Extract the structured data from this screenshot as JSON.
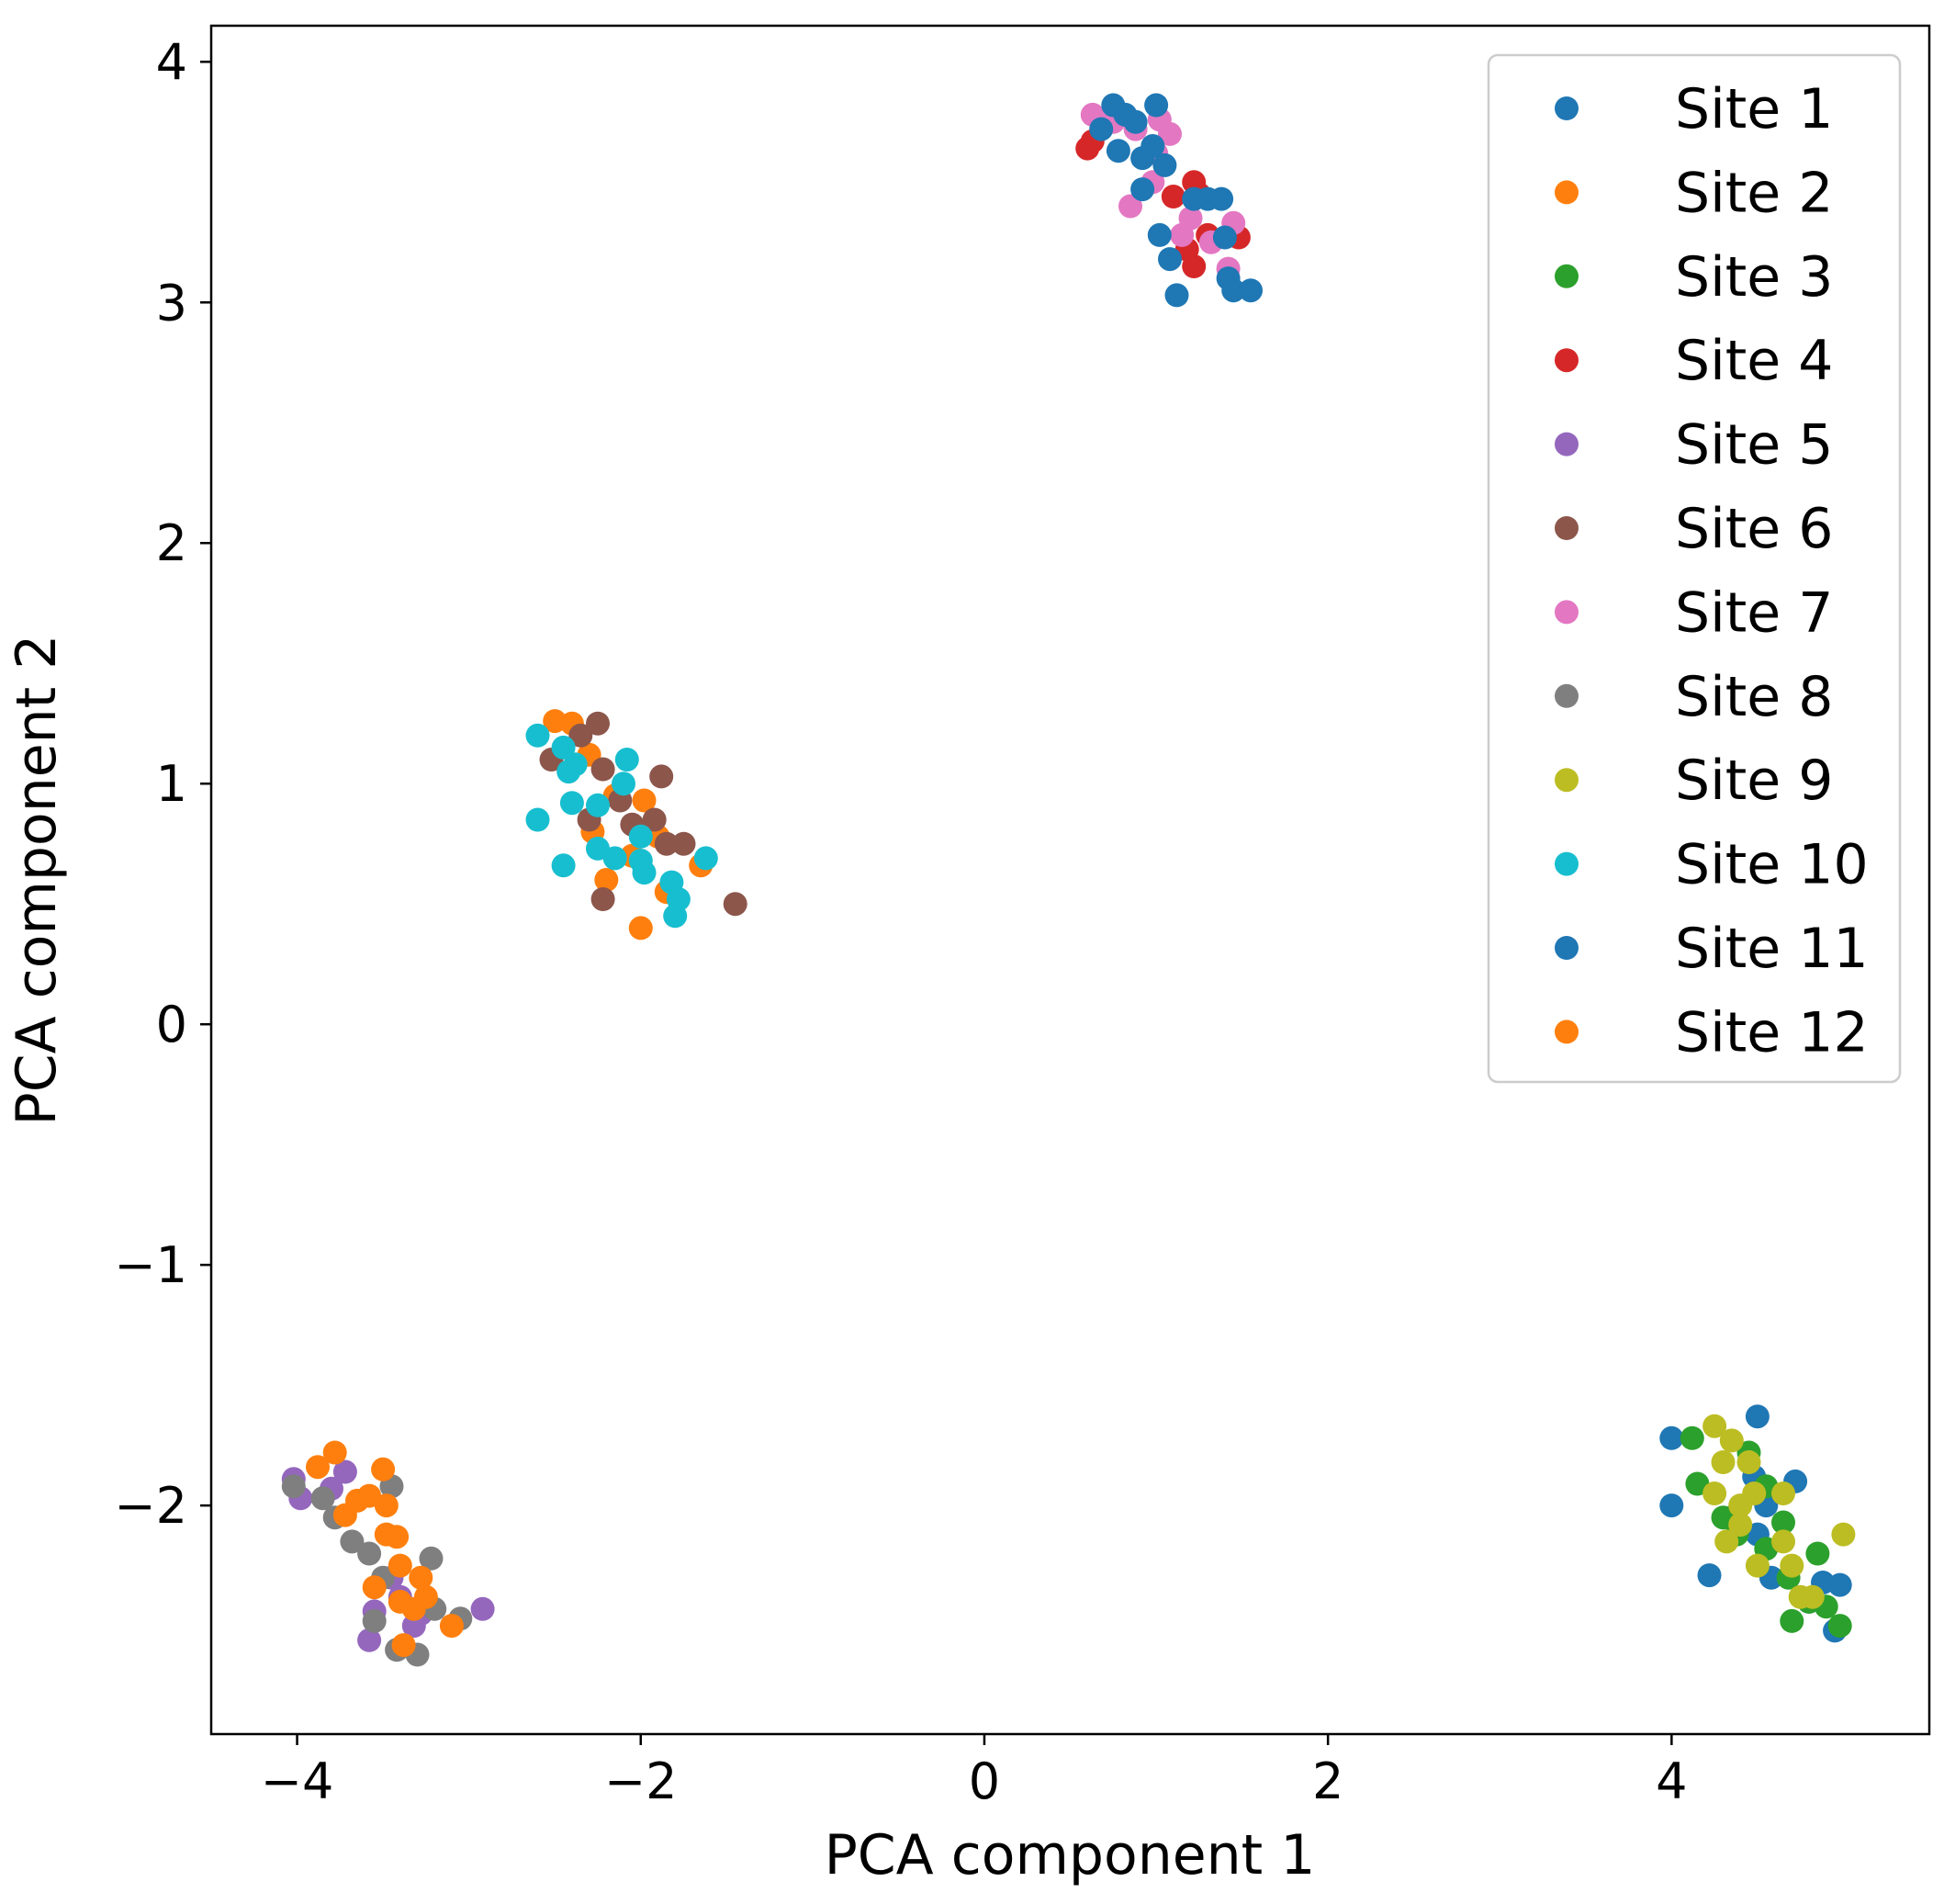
{
  "chart_data": {
    "type": "scatter",
    "title": "",
    "xlabel": "PCA component 1",
    "ylabel": "PCA component 2",
    "xlim": [
      -4.5,
      5.5
    ],
    "ylim": [
      -2.95,
      4.15
    ],
    "xticks": [
      {
        "value": -4,
        "label": "−4"
      },
      {
        "value": -2,
        "label": "−2"
      },
      {
        "value": 0,
        "label": "0"
      },
      {
        "value": 2,
        "label": "2"
      },
      {
        "value": 4,
        "label": "4"
      }
    ],
    "yticks": [
      {
        "value": -2,
        "label": "−2"
      },
      {
        "value": -1,
        "label": "−1"
      },
      {
        "value": 0,
        "label": "0"
      },
      {
        "value": 1,
        "label": "1"
      },
      {
        "value": 2,
        "label": "2"
      },
      {
        "value": 3,
        "label": "3"
      },
      {
        "value": 4,
        "label": "4"
      }
    ],
    "grid": false,
    "legend_position": "top-right",
    "series": [
      {
        "name": "Site 1",
        "color": "#1f77b4",
        "points": [
          [
            4.0,
            -1.72
          ],
          [
            4.0,
            -2.0
          ],
          [
            4.22,
            -2.29
          ],
          [
            4.5,
            -1.63
          ],
          [
            4.5,
            -2.12
          ],
          [
            4.48,
            -1.88
          ],
          [
            4.55,
            -2.0
          ],
          [
            4.58,
            -2.3
          ],
          [
            4.72,
            -1.9
          ],
          [
            4.88,
            -2.32
          ],
          [
            4.95,
            -2.52
          ],
          [
            4.98,
            -2.33
          ],
          [
            4.35,
            -2.05
          ],
          [
            4.8,
            -2.4
          ]
        ]
      },
      {
        "name": "Site 2",
        "color": "#ff7f0e",
        "points": [
          [
            -2.5,
            1.26
          ],
          [
            -2.4,
            1.25
          ],
          [
            -2.3,
            1.12
          ],
          [
            -2.28,
            0.8
          ],
          [
            -2.2,
            0.6
          ],
          [
            -2.0,
            0.4
          ],
          [
            -1.98,
            0.93
          ],
          [
            -2.05,
            0.7
          ],
          [
            -1.9,
            0.78
          ],
          [
            -1.65,
            0.66
          ],
          [
            -1.85,
            0.55
          ],
          [
            -2.15,
            0.95
          ]
        ]
      },
      {
        "name": "Site 3",
        "color": "#2ca02c",
        "points": [
          [
            4.12,
            -1.72
          ],
          [
            4.15,
            -1.91
          ],
          [
            4.3,
            -2.05
          ],
          [
            4.45,
            -1.78
          ],
          [
            4.55,
            -1.92
          ],
          [
            4.65,
            -2.07
          ],
          [
            4.68,
            -2.3
          ],
          [
            4.7,
            -2.48
          ],
          [
            4.8,
            -2.4
          ],
          [
            4.85,
            -2.2
          ],
          [
            4.98,
            -2.5
          ],
          [
            4.9,
            -2.42
          ],
          [
            4.38,
            -2.12
          ],
          [
            4.55,
            -2.18
          ]
        ]
      },
      {
        "name": "Site 4",
        "color": "#d62728",
        "points": [
          [
            0.6,
            3.64
          ],
          [
            0.63,
            3.67
          ],
          [
            1.1,
            3.44
          ],
          [
            1.22,
            3.5
          ],
          [
            1.25,
            3.45
          ],
          [
            1.3,
            3.28
          ],
          [
            1.22,
            3.15
          ],
          [
            1.48,
            3.27
          ],
          [
            1.18,
            3.22
          ]
        ]
      },
      {
        "name": "Site 5",
        "color": "#9467bd",
        "points": [
          [
            -4.02,
            -1.89
          ],
          [
            -3.98,
            -1.97
          ],
          [
            -3.8,
            -1.93
          ],
          [
            -3.72,
            -1.86
          ],
          [
            -3.58,
            -2.56
          ],
          [
            -3.55,
            -2.44
          ],
          [
            -3.4,
            -2.38
          ],
          [
            -3.32,
            -2.5
          ],
          [
            -3.28,
            -2.45
          ],
          [
            -2.92,
            -2.43
          ],
          [
            -3.45,
            -2.3
          ]
        ]
      },
      {
        "name": "Site 6",
        "color": "#8c564b",
        "points": [
          [
            -2.52,
            1.1
          ],
          [
            -2.35,
            1.2
          ],
          [
            -2.25,
            1.25
          ],
          [
            -2.22,
            1.06
          ],
          [
            -2.12,
            0.93
          ],
          [
            -2.3,
            0.85
          ],
          [
            -1.92,
            0.85
          ],
          [
            -1.88,
            1.03
          ],
          [
            -1.75,
            0.75
          ],
          [
            -1.45,
            0.5
          ],
          [
            -2.22,
            0.52
          ],
          [
            -1.85,
            0.75
          ],
          [
            -2.05,
            0.83
          ]
        ]
      },
      {
        "name": "Site 7",
        "color": "#e377c2",
        "points": [
          [
            0.63,
            3.78
          ],
          [
            0.75,
            3.75
          ],
          [
            0.88,
            3.72
          ],
          [
            1.0,
            3.62
          ],
          [
            1.08,
            3.7
          ],
          [
            0.85,
            3.4
          ],
          [
            0.98,
            3.5
          ],
          [
            1.15,
            3.28
          ],
          [
            1.2,
            3.35
          ],
          [
            1.32,
            3.25
          ],
          [
            1.45,
            3.33
          ],
          [
            1.42,
            3.14
          ],
          [
            1.02,
            3.76
          ]
        ]
      },
      {
        "name": "Site 8",
        "color": "#7f7f7f",
        "points": [
          [
            -4.02,
            -1.92
          ],
          [
            -3.85,
            -1.97
          ],
          [
            -3.78,
            -2.05
          ],
          [
            -3.68,
            -2.15
          ],
          [
            -3.58,
            -2.2
          ],
          [
            -3.5,
            -2.3
          ],
          [
            -3.45,
            -1.92
          ],
          [
            -3.42,
            -2.6
          ],
          [
            -3.3,
            -2.62
          ],
          [
            -3.22,
            -2.22
          ],
          [
            -3.2,
            -2.43
          ],
          [
            -3.05,
            -2.47
          ],
          [
            -3.55,
            -2.48
          ]
        ]
      },
      {
        "name": "Site 9",
        "color": "#bcbd22",
        "points": [
          [
            4.25,
            -1.67
          ],
          [
            4.3,
            -1.82
          ],
          [
            4.35,
            -1.73
          ],
          [
            4.25,
            -1.95
          ],
          [
            4.32,
            -2.15
          ],
          [
            4.4,
            -2.08
          ],
          [
            4.45,
            -1.82
          ],
          [
            4.48,
            -1.95
          ],
          [
            4.5,
            -2.25
          ],
          [
            4.65,
            -1.95
          ],
          [
            4.65,
            -2.15
          ],
          [
            4.7,
            -2.25
          ],
          [
            4.75,
            -2.38
          ],
          [
            4.82,
            -2.38
          ],
          [
            5.0,
            -2.12
          ],
          [
            4.4,
            -2.0
          ]
        ]
      },
      {
        "name": "Site 10",
        "color": "#17becf",
        "points": [
          [
            -2.6,
            1.2
          ],
          [
            -2.6,
            0.85
          ],
          [
            -2.45,
            1.15
          ],
          [
            -2.42,
            1.05
          ],
          [
            -2.4,
            0.92
          ],
          [
            -2.45,
            0.66
          ],
          [
            -2.25,
            0.91
          ],
          [
            -2.25,
            0.73
          ],
          [
            -2.15,
            0.69
          ],
          [
            -2.1,
            1.0
          ],
          [
            -2.08,
            1.1
          ],
          [
            -2.0,
            0.68
          ],
          [
            -2.0,
            0.78
          ],
          [
            -1.98,
            0.63
          ],
          [
            -1.82,
            0.59
          ],
          [
            -1.8,
            0.45
          ],
          [
            -1.78,
            0.52
          ],
          [
            -1.62,
            0.69
          ],
          [
            -2.38,
            1.08
          ]
        ]
      },
      {
        "name": "Site 11",
        "color": "#1f77b4",
        "points": [
          [
            0.68,
            3.72
          ],
          [
            0.75,
            3.82
          ],
          [
            0.78,
            3.63
          ],
          [
            0.82,
            3.78
          ],
          [
            0.88,
            3.75
          ],
          [
            0.92,
            3.6
          ],
          [
            0.92,
            3.47
          ],
          [
            0.98,
            3.65
          ],
          [
            1.0,
            3.82
          ],
          [
            1.02,
            3.28
          ],
          [
            1.05,
            3.57
          ],
          [
            1.08,
            3.18
          ],
          [
            1.12,
            3.03
          ],
          [
            1.22,
            3.43
          ],
          [
            1.3,
            3.43
          ],
          [
            1.38,
            3.43
          ],
          [
            1.4,
            3.27
          ],
          [
            1.42,
            3.1
          ],
          [
            1.45,
            3.05
          ],
          [
            1.55,
            3.05
          ]
        ]
      },
      {
        "name": "Site 12",
        "color": "#ff7f0e",
        "points": [
          [
            -3.88,
            -1.84
          ],
          [
            -3.78,
            -1.78
          ],
          [
            -3.72,
            -2.04
          ],
          [
            -3.65,
            -1.98
          ],
          [
            -3.58,
            -1.96
          ],
          [
            -3.55,
            -2.34
          ],
          [
            -3.5,
            -1.85
          ],
          [
            -3.48,
            -2.0
          ],
          [
            -3.42,
            -2.13
          ],
          [
            -3.4,
            -2.25
          ],
          [
            -3.4,
            -2.4
          ],
          [
            -3.38,
            -2.58
          ],
          [
            -3.32,
            -2.43
          ],
          [
            -3.28,
            -2.3
          ],
          [
            -3.25,
            -2.38
          ],
          [
            -3.1,
            -2.5
          ],
          [
            -3.48,
            -2.12
          ]
        ]
      }
    ]
  }
}
